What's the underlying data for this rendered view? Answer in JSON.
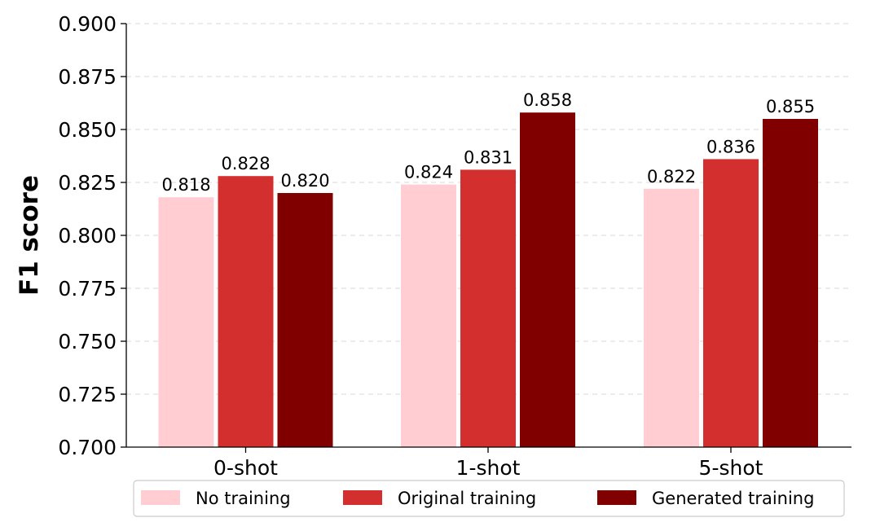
{
  "chart_data": {
    "type": "bar",
    "title": "",
    "xlabel": "",
    "ylabel": "F1 score",
    "categories": [
      "0-shot",
      "1-shot",
      "5-shot"
    ],
    "series": [
      {
        "name": "No training",
        "color": "#FFCDD2",
        "values": [
          0.818,
          0.824,
          0.822
        ]
      },
      {
        "name": "Original training",
        "color": "#D32F2F",
        "values": [
          0.828,
          0.831,
          0.836
        ]
      },
      {
        "name": "Generated training",
        "color": "#800000",
        "values": [
          0.82,
          0.858,
          0.855
        ]
      }
    ],
    "data_labels": [
      [
        "0.818",
        "0.824",
        "0.822"
      ],
      [
        "0.828",
        "0.831",
        "0.836"
      ],
      [
        "0.820",
        "0.858",
        "0.855"
      ]
    ],
    "ylim": [
      0.7,
      0.9
    ],
    "yticks": [
      0.7,
      0.725,
      0.75,
      0.775,
      0.8,
      0.825,
      0.85,
      0.875,
      0.9
    ],
    "ytick_labels": [
      "0.700",
      "0.725",
      "0.750",
      "0.775",
      "0.800",
      "0.825",
      "0.850",
      "0.875",
      "0.900"
    ],
    "grid": "horizontal dashed",
    "legend_position": "bottom-center"
  }
}
